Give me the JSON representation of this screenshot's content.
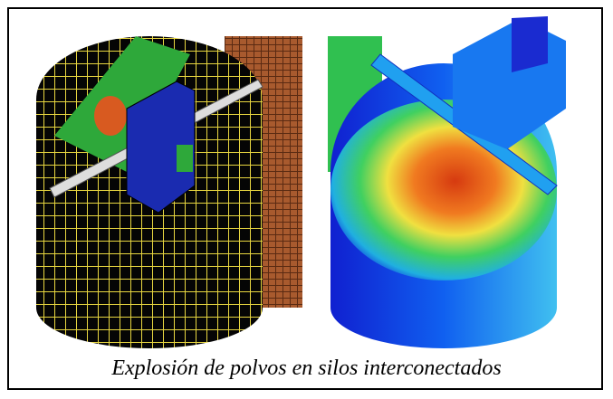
{
  "figure": {
    "caption": "Explosión de polvos en silos interconectados"
  }
}
